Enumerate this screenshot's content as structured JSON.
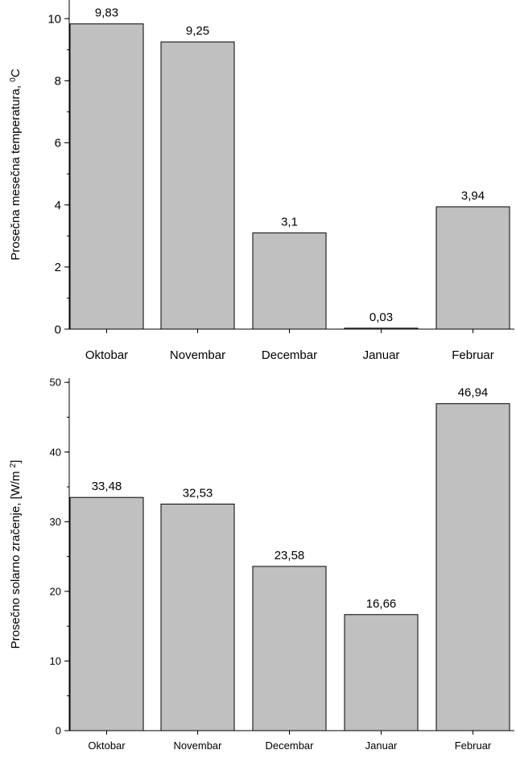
{
  "chart_data": [
    {
      "type": "bar",
      "categories": [
        "Oktobar",
        "Novembar",
        "Decembar",
        "Januar",
        "Februar"
      ],
      "values": [
        9.83,
        9.25,
        3.1,
        0.03,
        3.94
      ],
      "data_labels": [
        "9,83",
        "9,25",
        "3,1",
        "0,03",
        "3,94"
      ],
      "ylabel": "Prosečna mesečna temperatura,",
      "ylabel_unit_sup": "0",
      "ylabel_unit": "C",
      "ylim": [
        0,
        10.6
      ],
      "yticks": [
        0,
        2,
        4,
        6,
        8,
        10
      ],
      "minor_step": 1,
      "bar_color": "#c0c0c0",
      "grid": false
    },
    {
      "type": "bar",
      "categories": [
        "Oktobar",
        "Novembar",
        "Decembar",
        "Januar",
        "Februar"
      ],
      "values": [
        33.48,
        32.53,
        23.58,
        16.66,
        46.94
      ],
      "data_labels": [
        "33,48",
        "32,53",
        "23,58",
        "16,66",
        "46,94"
      ],
      "ylabel": "Prosečno solarno zračenje, [W/m",
      "ylabel_unit_sup": "2",
      "ylabel_unit": "]",
      "ylim": [
        0,
        50.6
      ],
      "yticks": [
        0,
        10,
        20,
        30,
        40,
        50
      ],
      "minor_step": 5,
      "bar_color": "#c0c0c0",
      "grid": false
    }
  ]
}
